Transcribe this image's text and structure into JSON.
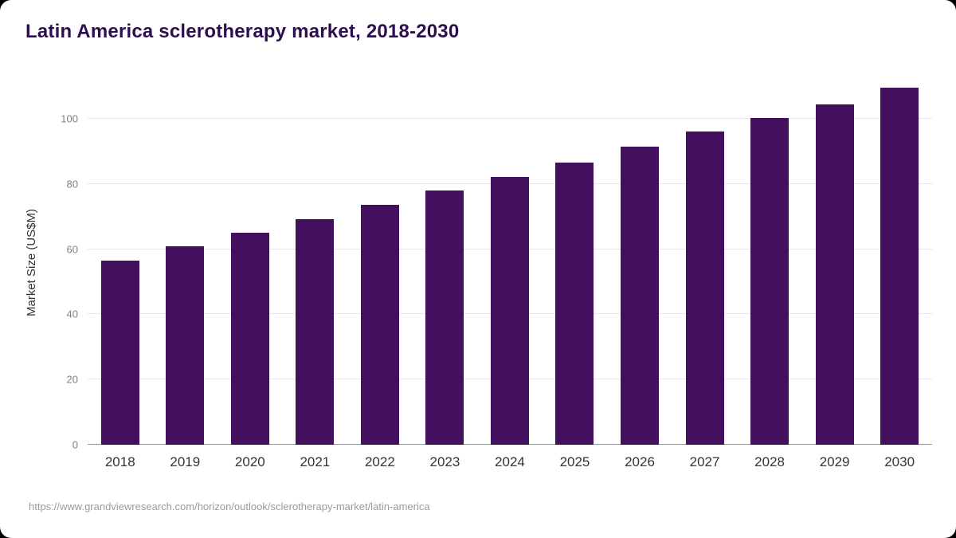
{
  "chart_data": {
    "type": "bar",
    "title": "Latin America sclerotherapy market, 2018-2030",
    "ylabel": "Market Size (US$M)",
    "xlabel": "",
    "categories": [
      "2018",
      "2019",
      "2020",
      "2021",
      "2022",
      "2023",
      "2024",
      "2025",
      "2026",
      "2027",
      "2028",
      "2029",
      "2030"
    ],
    "values": [
      56.5,
      60.8,
      65.0,
      69.2,
      73.5,
      78.0,
      82.2,
      86.5,
      91.5,
      96.0,
      100.2,
      104.5,
      109.5
    ],
    "yticks": [
      0,
      20,
      40,
      60,
      80,
      100
    ],
    "ylim": [
      0,
      112
    ],
    "bar_color": "#42105c",
    "grid": "horizontal",
    "legend": "none"
  },
  "source": {
    "text": "https://www.grandviewresearch.com/horizon/outlook/sclerotherapy-market/latin-america"
  }
}
